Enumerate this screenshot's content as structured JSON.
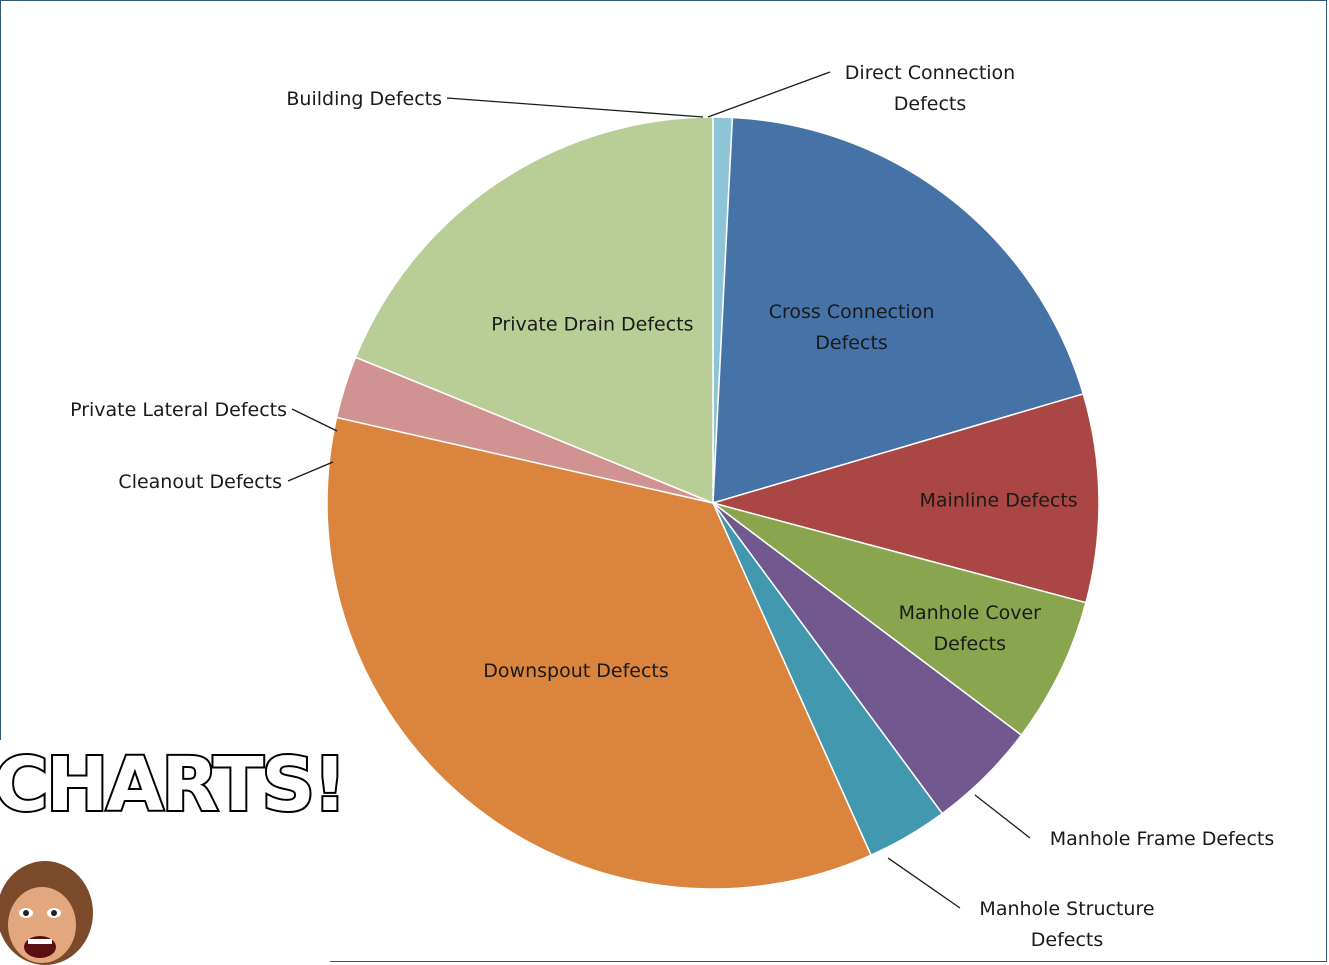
{
  "chart_data": {
    "type": "pie",
    "title": "",
    "slices": [
      {
        "label": "Direct Connection Defects",
        "value": 0.8,
        "color": "#8fc3d6",
        "label_lines": [
          "Direct Connection",
          "Defects"
        ],
        "label_pos": "outside"
      },
      {
        "label": "Cross Connection Defects",
        "value": 19.6,
        "color": "#4572a7",
        "label_lines": [
          "Cross Connection",
          "Defects"
        ],
        "label_pos": "inside"
      },
      {
        "label": "Mainline Defects",
        "value": 8.7,
        "color": "#aa4643",
        "label_lines": [
          "Mainline Defects"
        ],
        "label_pos": "inside"
      },
      {
        "label": "Manhole Cover Defects",
        "value": 6.1,
        "color": "#89a54e",
        "label_lines": [
          "Manhole Cover",
          "Defects"
        ],
        "label_pos": "inside"
      },
      {
        "label": "Manhole Frame Defects",
        "value": 4.6,
        "color": "#71588f",
        "label_lines": [
          "Manhole Frame Defects"
        ],
        "label_pos": "outside"
      },
      {
        "label": "Manhole Structure Defects",
        "value": 3.4,
        "color": "#4198af",
        "label_lines": [
          "Manhole Structure",
          "Defects"
        ],
        "label_pos": "outside"
      },
      {
        "label": "Downspout Defects",
        "value": 35.2,
        "color": "#db843d",
        "label_lines": [
          "Downspout Defects"
        ],
        "label_pos": "inside"
      },
      {
        "label": "Cleanout Defects",
        "value": 0.0,
        "color": "#93a9cf",
        "label_lines": [
          "Cleanout Defects"
        ],
        "label_pos": "outside"
      },
      {
        "label": "Private Lateral Defects",
        "value": 2.6,
        "color": "#d19392",
        "label_lines": [
          "Private Lateral Defects"
        ],
        "label_pos": "outside"
      },
      {
        "label": "Private Drain Defects",
        "value": 18.8,
        "color": "#b9cd96",
        "label_lines": [
          "Private Drain Defects"
        ],
        "label_pos": "inside"
      },
      {
        "label": "Building Defects",
        "value": 0.0,
        "color": "#a99bbd",
        "label_lines": [
          "Building Defects"
        ],
        "label_pos": "outside"
      }
    ],
    "legend": "none"
  },
  "meme": {
    "caption": "CHARTS!"
  }
}
